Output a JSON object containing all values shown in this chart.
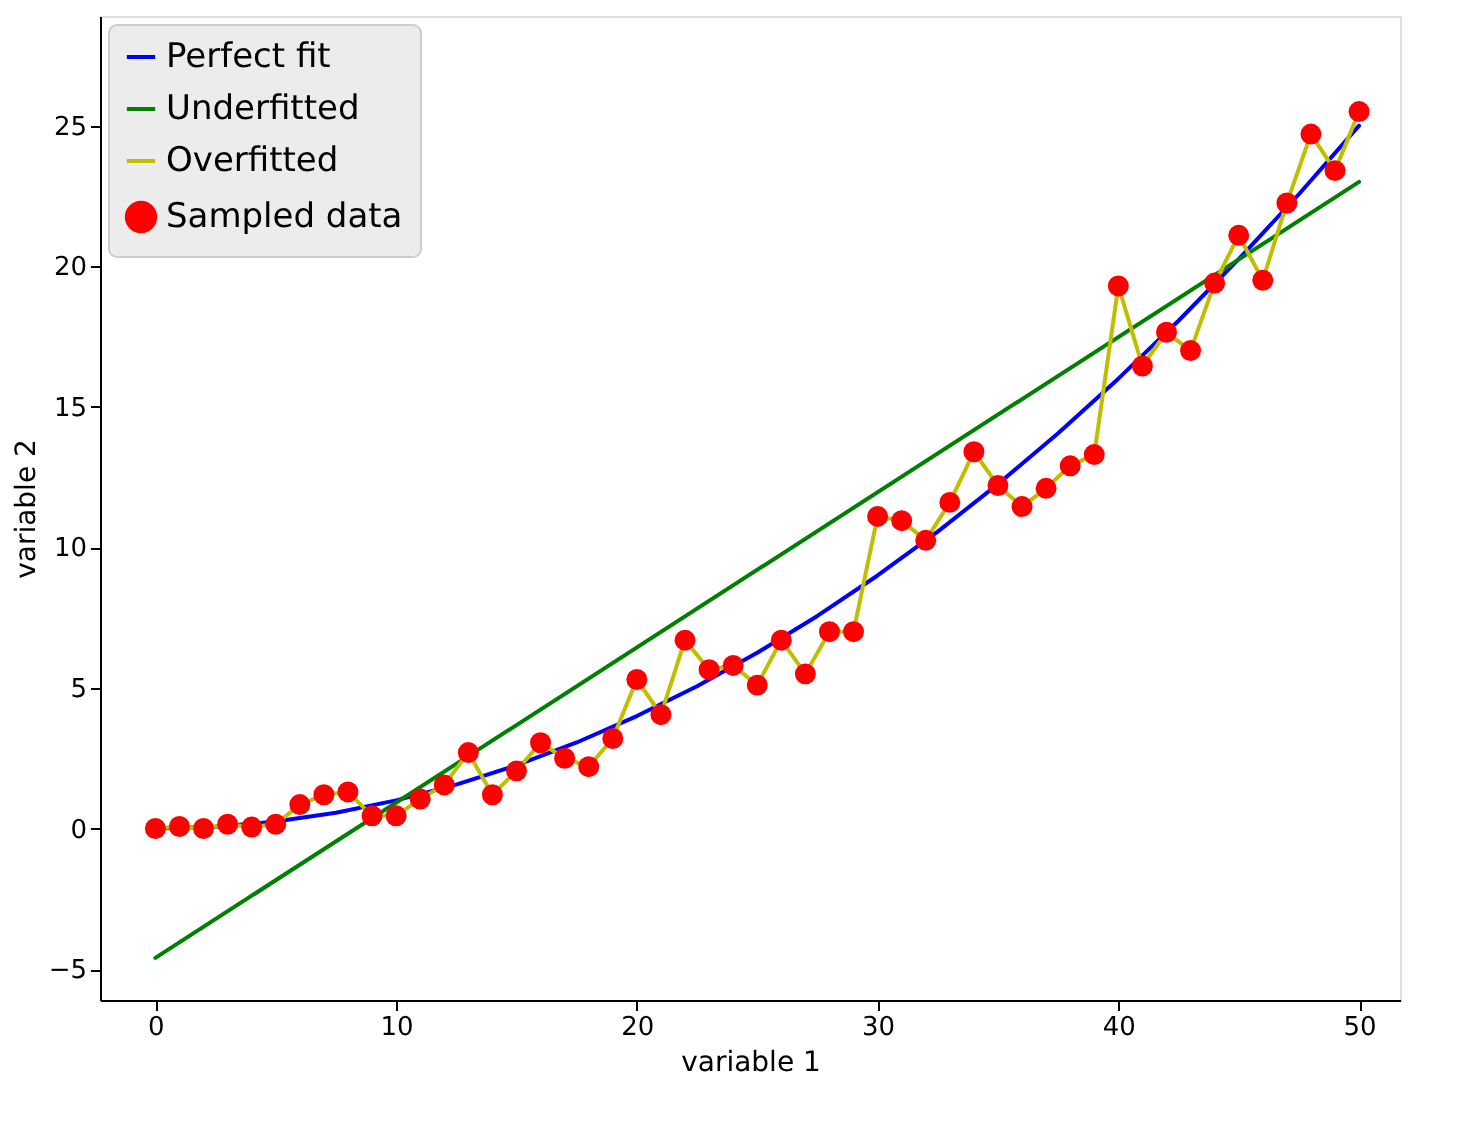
{
  "chart_data": {
    "type": "line",
    "xlabel": "variable 1",
    "ylabel": "variable 2",
    "xlim": [
      -2.3,
      51.7
    ],
    "ylim": [
      -6.1,
      28.9
    ],
    "xticks": [
      0,
      10,
      20,
      30,
      40,
      50
    ],
    "yticks": [
      -5,
      0,
      5,
      10,
      15,
      20,
      25
    ],
    "grid": false,
    "legend": "top left",
    "series": [
      {
        "name": "Perfect fit",
        "color": "#0000ff",
        "x": [
          0,
          2.5,
          5,
          7.5,
          10,
          12.5,
          15,
          17.5,
          20,
          22.5,
          25,
          27.5,
          30,
          32.5,
          35,
          37.5,
          40,
          42.5,
          45,
          47.5,
          50
        ],
        "values": [
          0,
          0.06,
          0.25,
          0.56,
          1,
          1.56,
          2.25,
          3.06,
          4,
          5.06,
          6.25,
          7.56,
          9,
          10.56,
          12.25,
          14.06,
          16,
          18.06,
          20.25,
          22.56,
          25
        ]
      },
      {
        "name": "Underfitted",
        "color": "#008000",
        "x": [
          0,
          50
        ],
        "values": [
          -4.6,
          23
        ]
      },
      {
        "name": "Overfitted",
        "color": "#bfbf00",
        "x": [
          0,
          1,
          2,
          3,
          4,
          5,
          6,
          7,
          8,
          9,
          10,
          11,
          12,
          13,
          14,
          15,
          16,
          17,
          18,
          19,
          20,
          21,
          22,
          23,
          24,
          25,
          26,
          27,
          28,
          29,
          30,
          31,
          32,
          33,
          34,
          35,
          36,
          37,
          38,
          39,
          40,
          41,
          42,
          43,
          44,
          45,
          46,
          47,
          48,
          49,
          50
        ],
        "values": [
          0,
          0.07,
          0,
          0.15,
          0.05,
          0.15,
          0.85,
          1.2,
          1.3,
          0.45,
          0.45,
          1.05,
          1.55,
          2.7,
          1.2,
          2.05,
          3.05,
          2.5,
          2.2,
          3.2,
          5.3,
          4.05,
          6.7,
          5.65,
          5.8,
          5.1,
          6.7,
          5.5,
          7,
          7,
          11.1,
          10.95,
          10.25,
          11.6,
          13.4,
          12.2,
          11.45,
          12.1,
          12.9,
          13.3,
          19.3,
          16.45,
          17.65,
          17,
          19.4,
          21.1,
          19.5,
          22.25,
          24.7,
          23.4,
          25.5
        ]
      },
      {
        "name": "Sampled data",
        "type": "scatter",
        "color": "#ff0000",
        "marker": "circle",
        "x": [
          0,
          1,
          2,
          3,
          4,
          5,
          6,
          7,
          8,
          9,
          10,
          11,
          12,
          13,
          14,
          15,
          16,
          17,
          18,
          19,
          20,
          21,
          22,
          23,
          24,
          25,
          26,
          27,
          28,
          29,
          30,
          31,
          32,
          33,
          34,
          35,
          36,
          37,
          38,
          39,
          40,
          41,
          42,
          43,
          44,
          45,
          46,
          47,
          48,
          49,
          50
        ],
        "values": [
          0,
          0.07,
          0,
          0.15,
          0.05,
          0.15,
          0.85,
          1.2,
          1.3,
          0.45,
          0.45,
          1.05,
          1.55,
          2.7,
          1.2,
          2.05,
          3.05,
          2.5,
          2.2,
          3.2,
          5.3,
          4.05,
          6.7,
          5.65,
          5.8,
          5.1,
          6.7,
          5.5,
          7,
          7,
          11.1,
          10.95,
          10.25,
          11.6,
          13.4,
          12.2,
          11.45,
          12.1,
          12.9,
          13.3,
          19.3,
          16.45,
          17.65,
          17,
          19.4,
          21.1,
          19.5,
          22.25,
          24.7,
          23.4,
          25.5
        ]
      }
    ]
  }
}
